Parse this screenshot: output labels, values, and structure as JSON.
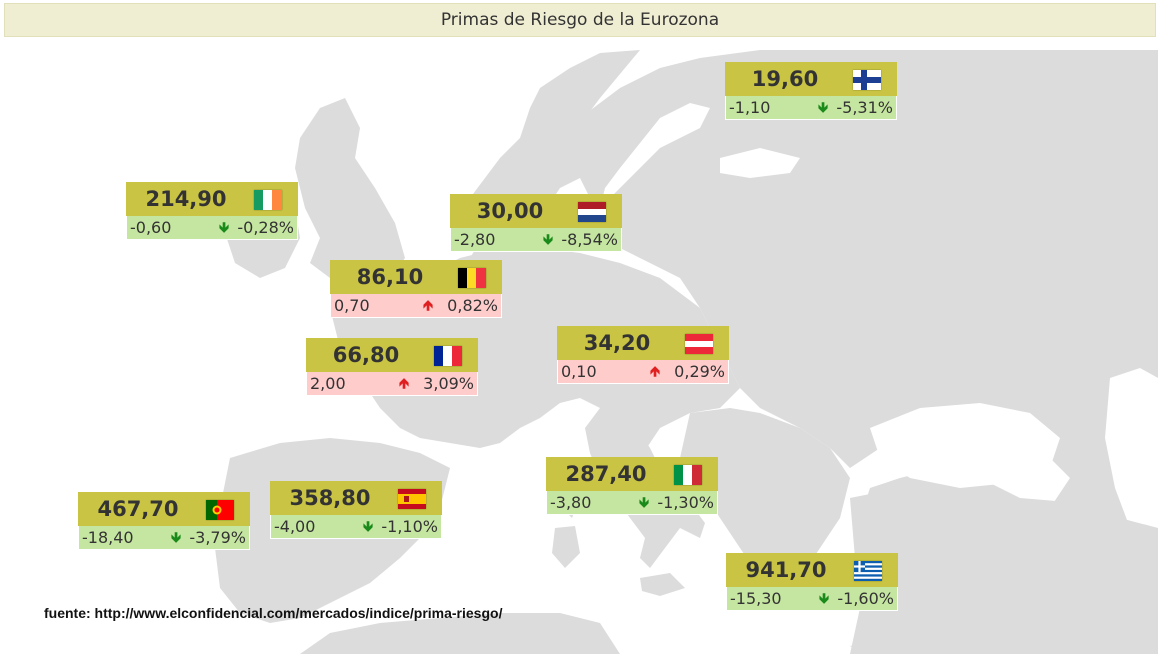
{
  "title": "Primas de Riesgo de la Eurozona",
  "source": "fuente: http://www.elconfidencial.com/mercados/indice/prima-riesgo/",
  "colors": {
    "value_bg": "#c9c443",
    "down_bg": "#c5e6a0",
    "up_bg": "#ffcccc",
    "land": "#dcdcdc",
    "sea": "#ffffff"
  },
  "countries": [
    {
      "id": "finland",
      "value": "19,60",
      "change": "-1,10",
      "pct": "-5,31%",
      "trend": "down",
      "arrow": "🡻"
    },
    {
      "id": "ireland",
      "value": "214,90",
      "change": "-0,60",
      "pct": "-0,28%",
      "trend": "down",
      "arrow": "🡻"
    },
    {
      "id": "netherlands",
      "value": "30,00",
      "change": "-2,80",
      "pct": "-8,54%",
      "trend": "down",
      "arrow": "🡻"
    },
    {
      "id": "belgium",
      "value": "86,10",
      "change": "0,70",
      "pct": "0,82%",
      "trend": "up",
      "arrow": "🡹"
    },
    {
      "id": "france",
      "value": "66,80",
      "change": "2,00",
      "pct": "3,09%",
      "trend": "up",
      "arrow": "🡹"
    },
    {
      "id": "austria",
      "value": "34,20",
      "change": "0,10",
      "pct": "0,29%",
      "trend": "up",
      "arrow": "🡹"
    },
    {
      "id": "italy",
      "value": "287,40",
      "change": "-3,80",
      "pct": "-1,30%",
      "trend": "down",
      "arrow": "🡻"
    },
    {
      "id": "spain",
      "value": "358,80",
      "change": "-4,00",
      "pct": "-1,10%",
      "trend": "down",
      "arrow": "🡻"
    },
    {
      "id": "portugal",
      "value": "467,70",
      "change": "-18,40",
      "pct": "-3,79%",
      "trend": "down",
      "arrow": "🡻"
    },
    {
      "id": "greece",
      "value": "941,70",
      "change": "-15,30",
      "pct": "-1,60%",
      "trend": "down",
      "arrow": "🡻"
    }
  ]
}
